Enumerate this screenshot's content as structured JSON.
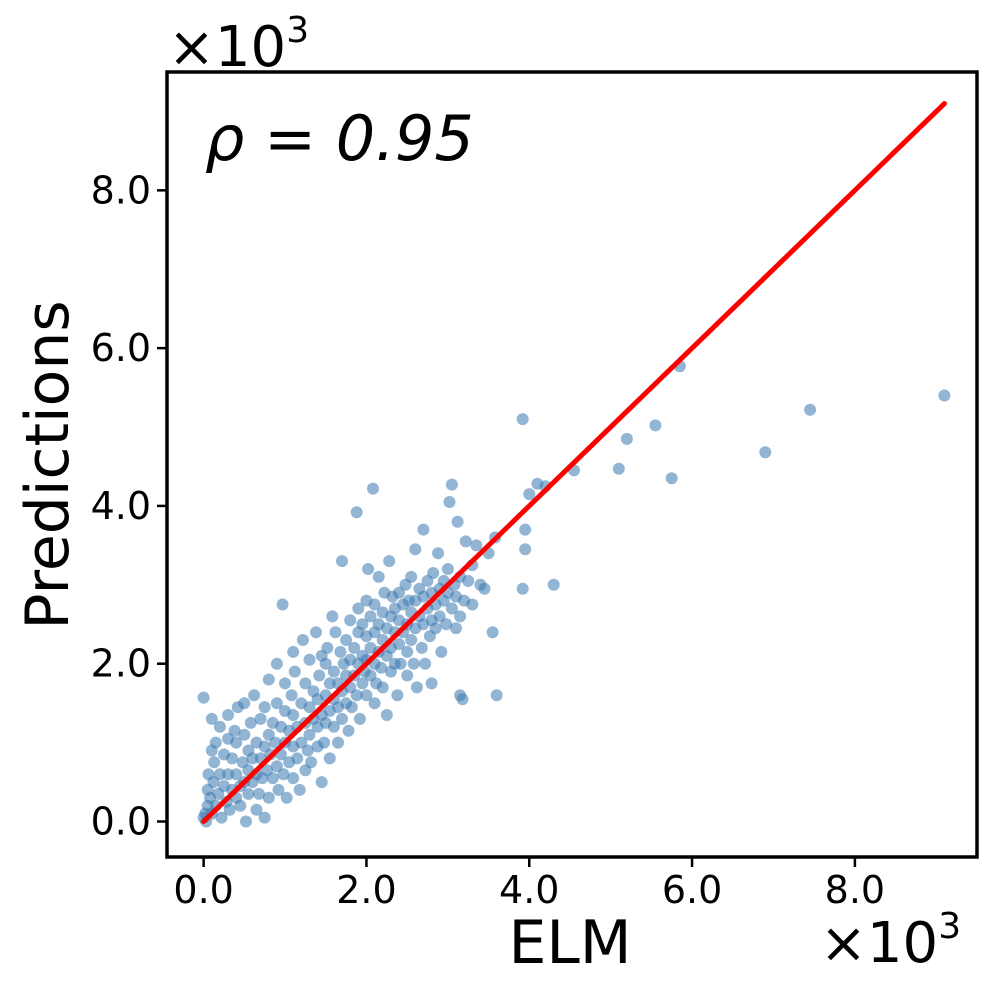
{
  "chart_data": {
    "type": "scatter",
    "title": "",
    "xlabel": "ELM",
    "ylabel": "Predictions",
    "annotation": "ρ = 0.95",
    "x_offset_label": "×10",
    "y_offset_label": "×10",
    "offset_exponent": "3",
    "xlim": [
      -0.45,
      9.5
    ],
    "ylim": [
      -0.45,
      9.5
    ],
    "x_ticks": [
      0.0,
      2.0,
      4.0,
      6.0,
      8.0
    ],
    "y_ticks": [
      0.0,
      2.0,
      4.0,
      6.0,
      8.0
    ],
    "x_tick_labels": [
      "0.0",
      "2.0",
      "4.0",
      "6.0",
      "8.0"
    ],
    "y_tick_labels": [
      "0.0",
      "2.0",
      "4.0",
      "6.0",
      "8.0"
    ],
    "grid": false,
    "point_color": "#3a78b0",
    "line_color": "#ff0000",
    "fit_line": {
      "x": [
        0.0,
        9.1
      ],
      "y": [
        0.0,
        9.1
      ]
    },
    "series": [
      {
        "points": [
          [
            0.0,
            0.05
          ],
          [
            0.02,
            0.1
          ],
          [
            0.03,
            0.0
          ],
          [
            0.05,
            0.2
          ],
          [
            0.05,
            0.4
          ],
          [
            0.06,
            0.6
          ],
          [
            0.08,
            0.3
          ],
          [
            0.1,
            0.1
          ],
          [
            0.1,
            0.9
          ],
          [
            0.1,
            1.3
          ],
          [
            0.12,
            0.5
          ],
          [
            0.13,
            0.75
          ],
          [
            0.15,
            0.2
          ],
          [
            0.15,
            1.0
          ],
          [
            0.0,
            1.57
          ],
          [
            0.18,
            0.35
          ],
          [
            0.2,
            0.6
          ],
          [
            0.2,
            1.2
          ],
          [
            0.22,
            0.05
          ],
          [
            0.25,
            0.45
          ],
          [
            0.25,
            0.85
          ],
          [
            0.28,
            0.25
          ],
          [
            0.3,
            0.6
          ],
          [
            0.3,
            1.05
          ],
          [
            0.3,
            1.35
          ],
          [
            0.32,
            0.15
          ],
          [
            0.35,
            0.4
          ],
          [
            0.35,
            0.8
          ],
          [
            0.38,
            1.15
          ],
          [
            0.4,
            0.3
          ],
          [
            0.4,
            0.6
          ],
          [
            0.4,
            1.0
          ],
          [
            0.42,
            1.45
          ],
          [
            0.45,
            0.45
          ],
          [
            0.45,
            0.2
          ],
          [
            0.48,
            0.75
          ],
          [
            0.5,
            0.5
          ],
          [
            0.5,
            1.1
          ],
          [
            0.5,
            1.5
          ],
          [
            0.52,
            0.0
          ],
          [
            0.55,
            0.35
          ],
          [
            0.55,
            0.65
          ],
          [
            0.55,
            0.9
          ],
          [
            0.58,
            1.25
          ],
          [
            0.6,
            0.5
          ],
          [
            0.6,
            0.8
          ],
          [
            0.62,
            1.6
          ],
          [
            0.65,
            0.15
          ],
          [
            0.65,
            0.6
          ],
          [
            0.65,
            1.0
          ],
          [
            0.68,
            0.35
          ],
          [
            0.7,
            0.8
          ],
          [
            0.7,
            1.3
          ],
          [
            0.72,
            0.55
          ],
          [
            0.75,
            0.05
          ],
          [
            0.75,
            0.95
          ],
          [
            0.75,
            1.45
          ],
          [
            0.78,
            0.65
          ],
          [
            0.8,
            0.3
          ],
          [
            0.8,
            1.1
          ],
          [
            0.8,
            1.8
          ],
          [
            0.82,
            0.85
          ],
          [
            0.85,
            0.55
          ],
          [
            0.85,
            1.25
          ],
          [
            0.88,
            1.0
          ],
          [
            0.9,
            0.7
          ],
          [
            0.9,
            1.5
          ],
          [
            0.9,
            2.0
          ],
          [
            0.92,
            0.4
          ],
          [
            0.95,
            0.85
          ],
          [
            0.95,
            1.2
          ],
          [
            0.97,
            2.75
          ],
          [
            0.98,
            0.6
          ],
          [
            1.0,
            1.0
          ],
          [
            1.0,
            1.4
          ],
          [
            1.0,
            1.75
          ],
          [
            1.02,
            0.3
          ],
          [
            1.05,
            0.75
          ],
          [
            1.05,
            1.15
          ],
          [
            1.08,
            1.6
          ],
          [
            1.1,
            0.55
          ],
          [
            1.1,
            0.95
          ],
          [
            1.1,
            1.35
          ],
          [
            1.1,
            2.15
          ],
          [
            1.12,
            1.9
          ],
          [
            1.15,
            0.8
          ],
          [
            1.15,
            1.2
          ],
          [
            1.18,
            0.4
          ],
          [
            1.2,
            1.0
          ],
          [
            1.2,
            1.5
          ],
          [
            1.22,
            2.3
          ],
          [
            1.25,
            0.65
          ],
          [
            1.25,
            1.25
          ],
          [
            1.25,
            1.75
          ],
          [
            1.28,
            0.9
          ],
          [
            1.3,
            1.1
          ],
          [
            1.3,
            1.45
          ],
          [
            1.3,
            2.05
          ],
          [
            1.32,
            0.75
          ],
          [
            1.35,
            1.3
          ],
          [
            1.35,
            1.65
          ],
          [
            1.38,
            2.4
          ],
          [
            1.4,
            0.95
          ],
          [
            1.4,
            1.2
          ],
          [
            1.4,
            1.55
          ],
          [
            1.42,
            1.85
          ],
          [
            1.45,
            0.5
          ],
          [
            1.45,
            1.35
          ],
          [
            1.45,
            2.1
          ],
          [
            1.48,
            1.0
          ],
          [
            1.5,
            1.25
          ],
          [
            1.5,
            1.6
          ],
          [
            1.5,
            2.0
          ],
          [
            1.52,
            2.2
          ],
          [
            1.55,
            1.4
          ],
          [
            1.55,
            0.8
          ],
          [
            1.55,
            1.75
          ],
          [
            1.58,
            2.6
          ],
          [
            1.6,
            1.2
          ],
          [
            1.6,
            1.55
          ],
          [
            1.6,
            1.9
          ],
          [
            1.62,
            2.4
          ],
          [
            1.65,
            1.0
          ],
          [
            1.65,
            1.45
          ],
          [
            1.65,
            1.75
          ],
          [
            1.68,
            2.15
          ],
          [
            1.7,
            1.3
          ],
          [
            1.7,
            1.65
          ],
          [
            1.7,
            3.3
          ],
          [
            1.72,
            2.0
          ],
          [
            1.75,
            1.5
          ],
          [
            1.75,
            1.85
          ],
          [
            1.75,
            2.3
          ],
          [
            1.78,
            1.15
          ],
          [
            1.8,
            1.7
          ],
          [
            1.8,
            2.05
          ],
          [
            1.8,
            2.55
          ],
          [
            1.82,
            1.45
          ],
          [
            1.85,
            1.85
          ],
          [
            1.85,
            2.2
          ],
          [
            1.88,
            1.6
          ],
          [
            1.88,
            3.92
          ],
          [
            1.9,
            2.0
          ],
          [
            1.9,
            2.4
          ],
          [
            1.9,
            2.7
          ],
          [
            1.92,
            1.3
          ],
          [
            1.95,
            1.75
          ],
          [
            1.95,
            2.1
          ],
          [
            1.95,
            2.5
          ],
          [
            1.98,
            1.9
          ],
          [
            2.0,
            1.6
          ],
          [
            2.0,
            2.05
          ],
          [
            2.0,
            2.35
          ],
          [
            2.0,
            2.8
          ],
          [
            2.02,
            3.2
          ],
          [
            2.05,
            1.85
          ],
          [
            2.05,
            2.2
          ],
          [
            2.05,
            2.6
          ],
          [
            2.08,
            4.22
          ],
          [
            2.1,
            1.5
          ],
          [
            2.1,
            2.0
          ],
          [
            2.1,
            2.4
          ],
          [
            2.1,
            2.75
          ],
          [
            2.12,
            1.75
          ],
          [
            2.15,
            2.15
          ],
          [
            2.15,
            2.5
          ],
          [
            2.15,
            3.1
          ],
          [
            2.18,
            1.95
          ],
          [
            2.2,
            2.3
          ],
          [
            2.2,
            2.65
          ],
          [
            2.2,
            1.7
          ],
          [
            2.22,
            2.9
          ],
          [
            2.25,
            2.1
          ],
          [
            2.25,
            2.45
          ],
          [
            2.25,
            1.35
          ],
          [
            2.28,
            3.3
          ],
          [
            2.3,
            2.2
          ],
          [
            2.3,
            2.6
          ],
          [
            2.3,
            1.9
          ],
          [
            2.32,
            2.85
          ],
          [
            2.35,
            2.0
          ],
          [
            2.35,
            2.4
          ],
          [
            2.35,
            2.7
          ],
          [
            2.38,
            1.6
          ],
          [
            2.4,
            2.25
          ],
          [
            2.4,
            2.55
          ],
          [
            2.4,
            2.9
          ],
          [
            2.42,
            2.0
          ],
          [
            2.45,
            2.4
          ],
          [
            2.45,
            2.75
          ],
          [
            2.48,
            3.0
          ],
          [
            2.5,
            2.15
          ],
          [
            2.5,
            2.5
          ],
          [
            2.5,
            1.85
          ],
          [
            2.52,
            2.8
          ],
          [
            2.55,
            2.3
          ],
          [
            2.55,
            2.65
          ],
          [
            2.55,
            3.1
          ],
          [
            2.58,
            2.0
          ],
          [
            2.6,
            2.45
          ],
          [
            2.6,
            2.8
          ],
          [
            2.6,
            3.45
          ],
          [
            2.62,
            1.7
          ],
          [
            2.65,
            2.6
          ],
          [
            2.65,
            2.95
          ],
          [
            2.68,
            2.2
          ],
          [
            2.7,
            2.5
          ],
          [
            2.7,
            2.85
          ],
          [
            2.7,
            3.7
          ],
          [
            2.72,
            2.0
          ],
          [
            2.75,
            2.7
          ],
          [
            2.75,
            3.05
          ],
          [
            2.78,
            2.35
          ],
          [
            2.8,
            2.55
          ],
          [
            2.8,
            2.9
          ],
          [
            2.8,
            1.75
          ],
          [
            2.82,
            3.15
          ],
          [
            2.85,
            2.45
          ],
          [
            2.85,
            2.75
          ],
          [
            2.88,
            3.4
          ],
          [
            2.9,
            2.6
          ],
          [
            2.9,
            2.95
          ],
          [
            2.92,
            2.15
          ],
          [
            2.95,
            2.8
          ],
          [
            2.95,
            3.05
          ],
          [
            2.98,
            2.5
          ],
          [
            3.0,
            2.9
          ],
          [
            3.0,
            3.2
          ],
          [
            3.02,
            4.05
          ],
          [
            3.05,
            2.7
          ],
          [
            3.05,
            4.27
          ],
          [
            3.08,
            3.0
          ],
          [
            3.1,
            2.45
          ],
          [
            3.1,
            2.85
          ],
          [
            3.12,
            3.8
          ],
          [
            3.15,
            2.6
          ],
          [
            3.15,
            3.1
          ],
          [
            3.15,
            1.6
          ],
          [
            3.18,
            1.55
          ],
          [
            3.2,
            2.8
          ],
          [
            3.22,
            3.55
          ],
          [
            3.25,
            3.05
          ],
          [
            3.3,
            2.75
          ],
          [
            3.3,
            3.25
          ],
          [
            3.35,
            3.5
          ],
          [
            3.4,
            3.0
          ],
          [
            3.45,
            2.95
          ],
          [
            3.5,
            3.4
          ],
          [
            3.55,
            2.4
          ],
          [
            3.58,
            3.6
          ],
          [
            3.6,
            1.6
          ],
          [
            3.92,
            5.1
          ],
          [
            3.92,
            2.95
          ],
          [
            3.95,
            3.45
          ],
          [
            3.95,
            3.7
          ],
          [
            4.0,
            4.15
          ],
          [
            4.1,
            4.28
          ],
          [
            4.2,
            4.25
          ],
          [
            4.3,
            3.0
          ],
          [
            4.55,
            4.45
          ],
          [
            5.1,
            4.47
          ],
          [
            5.2,
            4.85
          ],
          [
            5.55,
            5.02
          ],
          [
            5.75,
            4.35
          ],
          [
            5.85,
            5.77
          ],
          [
            6.9,
            4.68
          ],
          [
            7.45,
            5.22
          ],
          [
            9.1,
            5.4
          ]
        ]
      }
    ]
  }
}
